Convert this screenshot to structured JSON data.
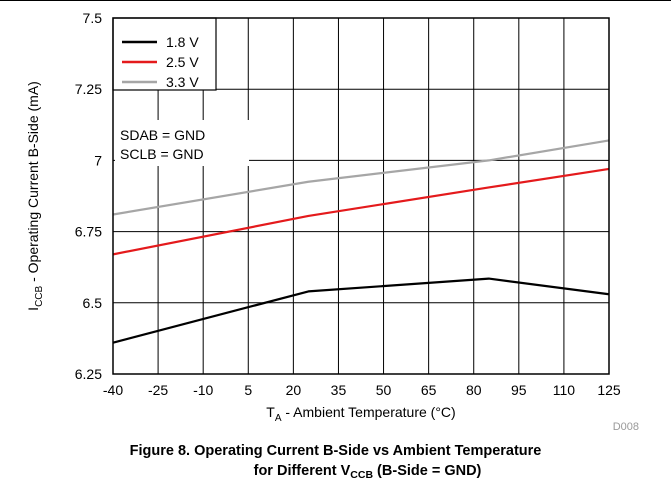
{
  "chart_data": {
    "type": "line",
    "title": "",
    "xlabel": "T_A - Ambient Temperature (°C)",
    "xlabel_parts": {
      "main": "T",
      "sub": "A",
      "rest": " - Ambient Temperature (°C)"
    },
    "ylabel": "I_CCB - Operating Current B-Side (mA)",
    "ylabel_parts": {
      "main": "I",
      "sub": "CCB",
      "rest": " - Operating Current B-Side (mA)"
    },
    "xlim": [
      -40,
      125
    ],
    "ylim": [
      6.25,
      7.5
    ],
    "x_ticks": [
      -40,
      -25,
      -10,
      5,
      20,
      35,
      50,
      65,
      80,
      95,
      110,
      125
    ],
    "y_ticks": [
      6.25,
      6.5,
      6.75,
      7,
      7.25,
      7.5
    ],
    "y_tick_labels": [
      "6.25",
      "6.5",
      "6.75",
      "7",
      "7.25",
      "7.5"
    ],
    "grid": true,
    "legend_position": "top-left",
    "series": [
      {
        "name": "1.8 V",
        "color": "#000000",
        "x": [
          -40,
          25,
          85,
          125
        ],
        "y": [
          6.36,
          6.54,
          6.585,
          6.53
        ]
      },
      {
        "name": "2.5 V",
        "color": "#e41a1c",
        "x": [
          -40,
          25,
          85,
          125
        ],
        "y": [
          6.67,
          6.805,
          6.905,
          6.97
        ]
      },
      {
        "name": "3.3 V",
        "color": "#a6a6a6",
        "x": [
          -40,
          25,
          85,
          125
        ],
        "y": [
          6.81,
          6.925,
          7.0,
          7.07
        ]
      }
    ],
    "annotations": [
      "SDAB = GND",
      "SCLB = GND"
    ],
    "figure_id": "D008"
  },
  "caption": {
    "line1": "Figure 8. Operating Current B-Side vs Ambient Temperature",
    "line2_prefix": "for Different V",
    "line2_sub": "CCB",
    "line2_suffix": " (B-Side = GND)"
  }
}
